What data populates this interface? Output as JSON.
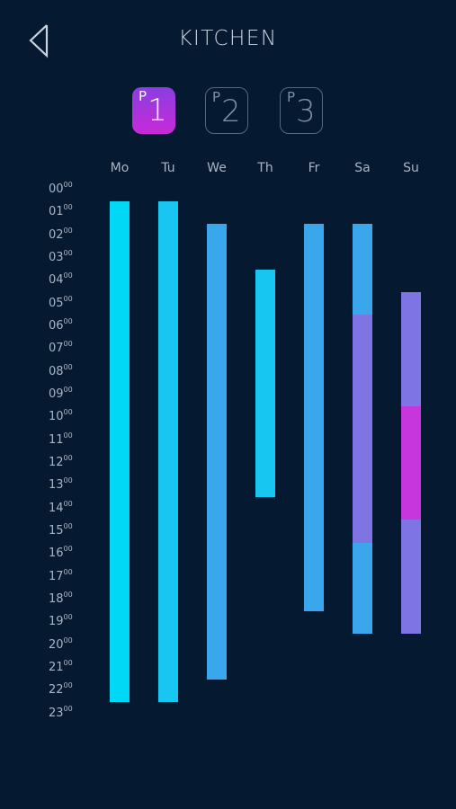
{
  "header": {
    "title": "KITCHEN",
    "back_icon": "back-arrow-icon"
  },
  "programs": [
    {
      "prefix": "P",
      "number": "1",
      "active": true
    },
    {
      "prefix": "P",
      "number": "2",
      "active": false
    },
    {
      "prefix": "P",
      "number": "3",
      "active": false
    }
  ],
  "days": [
    "Mo",
    "Tu",
    "We",
    "Th",
    "Fr",
    "Sa",
    "Su"
  ],
  "hours": [
    {
      "h": "00",
      "m": "00"
    },
    {
      "h": "01",
      "m": "00"
    },
    {
      "h": "02",
      "m": "00"
    },
    {
      "h": "03",
      "m": "00"
    },
    {
      "h": "04",
      "m": "00"
    },
    {
      "h": "05",
      "m": "00"
    },
    {
      "h": "06",
      "m": "00"
    },
    {
      "h": "07",
      "m": "00"
    },
    {
      "h": "08",
      "m": "00"
    },
    {
      "h": "09",
      "m": "00"
    },
    {
      "h": "10",
      "m": "00"
    },
    {
      "h": "11",
      "m": "00"
    },
    {
      "h": "12",
      "m": "00"
    },
    {
      "h": "13",
      "m": "00"
    },
    {
      "h": "14",
      "m": "00"
    },
    {
      "h": "15",
      "m": "00"
    },
    {
      "h": "16",
      "m": "00"
    },
    {
      "h": "17",
      "m": "00"
    },
    {
      "h": "18",
      "m": "00"
    },
    {
      "h": "19",
      "m": "00"
    },
    {
      "h": "20",
      "m": "00"
    },
    {
      "h": "21",
      "m": "00"
    },
    {
      "h": "22",
      "m": "00"
    },
    {
      "h": "23",
      "m": "00"
    }
  ],
  "colors": {
    "cyan": "#00d8f5",
    "sky": "#18c6f2",
    "blue": "#3aa6ec",
    "violet": "#7f74e4",
    "magenta": "#c636dc"
  },
  "schedule": [
    {
      "day": "Mo",
      "segments": [
        {
          "start": 0.5,
          "end": 22.5,
          "color": "cyan"
        }
      ]
    },
    {
      "day": "Tu",
      "segments": [
        {
          "start": 0.5,
          "end": 22.5,
          "color": "sky"
        }
      ]
    },
    {
      "day": "We",
      "segments": [
        {
          "start": 1.5,
          "end": 21.5,
          "color": "blue"
        }
      ]
    },
    {
      "day": "Th",
      "segments": [
        {
          "start": 3.5,
          "end": 13.5,
          "color": "sky"
        }
      ]
    },
    {
      "day": "Fr",
      "segments": [
        {
          "start": 1.5,
          "end": 18.5,
          "color": "blue"
        }
      ]
    },
    {
      "day": "Sa",
      "segments": [
        {
          "start": 1.5,
          "end": 5.5,
          "color": "blue"
        },
        {
          "start": 5.5,
          "end": 15.5,
          "color": "violet"
        },
        {
          "start": 15.5,
          "end": 19.5,
          "color": "blue"
        }
      ]
    },
    {
      "day": "Su",
      "segments": [
        {
          "start": 4.5,
          "end": 9.5,
          "color": "violet"
        },
        {
          "start": 9.5,
          "end": 14.5,
          "color": "magenta"
        },
        {
          "start": 14.5,
          "end": 19.5,
          "color": "violet"
        }
      ]
    }
  ]
}
